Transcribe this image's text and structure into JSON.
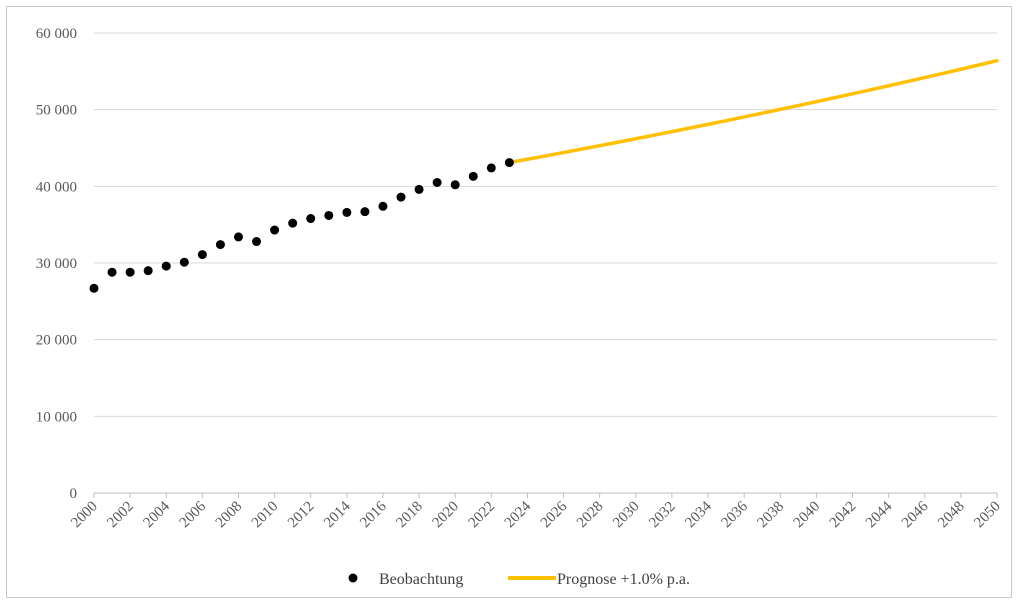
{
  "chart_data": {
    "type": "scatter+line",
    "title": "",
    "xlabel": "",
    "ylabel": "",
    "ylim": [
      0,
      60000
    ],
    "xlim": [
      2000,
      2050
    ],
    "y_ticks": [
      0,
      10000,
      20000,
      30000,
      40000,
      50000,
      60000
    ],
    "y_tick_labels": [
      "0",
      "10 000",
      "20 000",
      "30 000",
      "40 000",
      "50 000",
      "60 000"
    ],
    "x_ticks": [
      2000,
      2002,
      2004,
      2006,
      2008,
      2010,
      2012,
      2014,
      2016,
      2018,
      2020,
      2022,
      2024,
      2026,
      2028,
      2030,
      2032,
      2034,
      2036,
      2038,
      2040,
      2042,
      2044,
      2046,
      2048,
      2050
    ],
    "x_tick_labels": [
      "2000",
      "2002",
      "2004",
      "2006",
      "2008",
      "2010",
      "2012",
      "2014",
      "2016",
      "2018",
      "2020",
      "2022",
      "2024",
      "2026",
      "2028",
      "2030",
      "2032",
      "2034",
      "2036",
      "2038",
      "2040",
      "2042",
      "2044",
      "2046",
      "2048",
      "2050"
    ],
    "grid": "horizontal",
    "legend_position": "bottom",
    "series": [
      {
        "name": "Beobachtung",
        "kind": "scatter",
        "color": "#000000",
        "points": [
          [
            2000,
            26700
          ],
          [
            2001,
            28800
          ],
          [
            2002,
            28800
          ],
          [
            2003,
            29000
          ],
          [
            2004,
            29600
          ],
          [
            2005,
            30100
          ],
          [
            2006,
            31100
          ],
          [
            2007,
            32400
          ],
          [
            2008,
            33400
          ],
          [
            2009,
            32800
          ],
          [
            2010,
            34300
          ],
          [
            2011,
            35200
          ],
          [
            2012,
            35800
          ],
          [
            2013,
            36200
          ],
          [
            2014,
            36600
          ],
          [
            2015,
            36700
          ],
          [
            2016,
            37400
          ],
          [
            2017,
            38600
          ],
          [
            2018,
            39600
          ],
          [
            2019,
            40500
          ],
          [
            2020,
            40200
          ],
          [
            2021,
            41300
          ],
          [
            2022,
            42400
          ],
          [
            2023,
            43100
          ]
        ]
      },
      {
        "name": "Prognose +1.0% p.a.",
        "kind": "line",
        "color": "#FFC000",
        "growth_rate": 0.01,
        "start": [
          2023,
          43100
        ],
        "end": [
          2050,
          56500
        ]
      }
    ]
  }
}
